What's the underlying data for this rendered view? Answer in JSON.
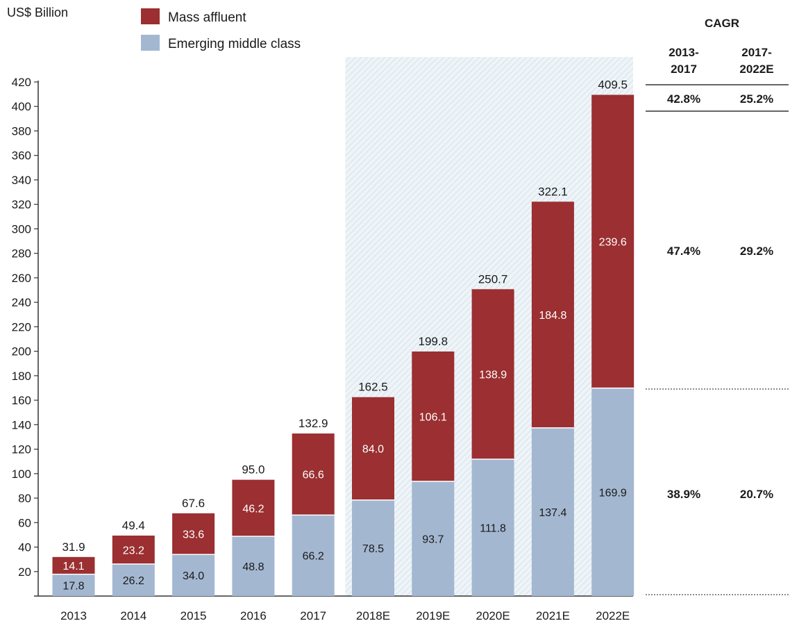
{
  "chart_data": {
    "type": "bar",
    "stacked": true,
    "ylabel": "US$ Billion",
    "ylim": [
      0,
      420
    ],
    "ytick_step": 20,
    "categories": [
      "2013",
      "2014",
      "2015",
      "2016",
      "2017",
      "2018E",
      "2019E",
      "2020E",
      "2021E",
      "2022E"
    ],
    "forecast_start_index": 5,
    "series": [
      {
        "name": "Emerging middle class",
        "color": "#a4b7d1",
        "values": [
          17.8,
          26.2,
          34.0,
          48.8,
          66.2,
          78.5,
          93.7,
          111.8,
          137.4,
          169.9
        ]
      },
      {
        "name": "Mass affluent",
        "color": "#9b2f31",
        "values": [
          14.1,
          23.2,
          33.6,
          46.2,
          66.6,
          84.0,
          106.1,
          138.9,
          184.8,
          239.6
        ]
      }
    ],
    "totals": [
      31.9,
      49.4,
      67.6,
      95.0,
      132.9,
      162.5,
      199.8,
      250.7,
      322.1,
      409.5
    ],
    "legend_position": "top-left"
  },
  "cagr": {
    "title": "CAGR",
    "col1_l1": "2013-",
    "col1_l2": "2017",
    "col2_l1": "2017-",
    "col2_l2": "2022E",
    "total": [
      "42.8%",
      "25.2%"
    ],
    "mass_affluent": [
      "47.4%",
      "29.2%"
    ],
    "emerging_middle_class": [
      "38.9%",
      "20.7%"
    ]
  }
}
